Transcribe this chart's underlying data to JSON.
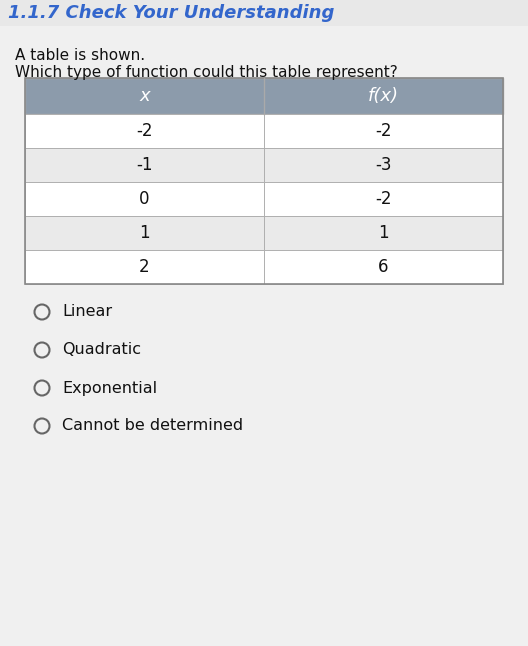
{
  "title": "1.1.7 Check Your Understanding",
  "title_color": "#3366CC",
  "question_line1": "A table is shown.",
  "question_line2": "Which type of function could this table represent?",
  "col_headers": [
    "x",
    "f(x)"
  ],
  "table_data": [
    [
      "-2",
      "-2"
    ],
    [
      "-1",
      "-3"
    ],
    [
      "0",
      "-2"
    ],
    [
      "1",
      "1"
    ],
    [
      "2",
      "6"
    ]
  ],
  "options": [
    "Linear",
    "Quadratic",
    "Exponential",
    "Cannot be determined"
  ],
  "header_bg": "#8C9BAB",
  "row_bg_light": "#FFFFFF",
  "row_bg_mid": "#EAEAEA",
  "border_color": "#AAAAAA",
  "text_color": "#111111",
  "header_text_color": "#FFFFFF",
  "fig_bg": "#E8E8E8",
  "title_fontsize": 13,
  "body_fontsize": 11,
  "table_fontsize": 12
}
